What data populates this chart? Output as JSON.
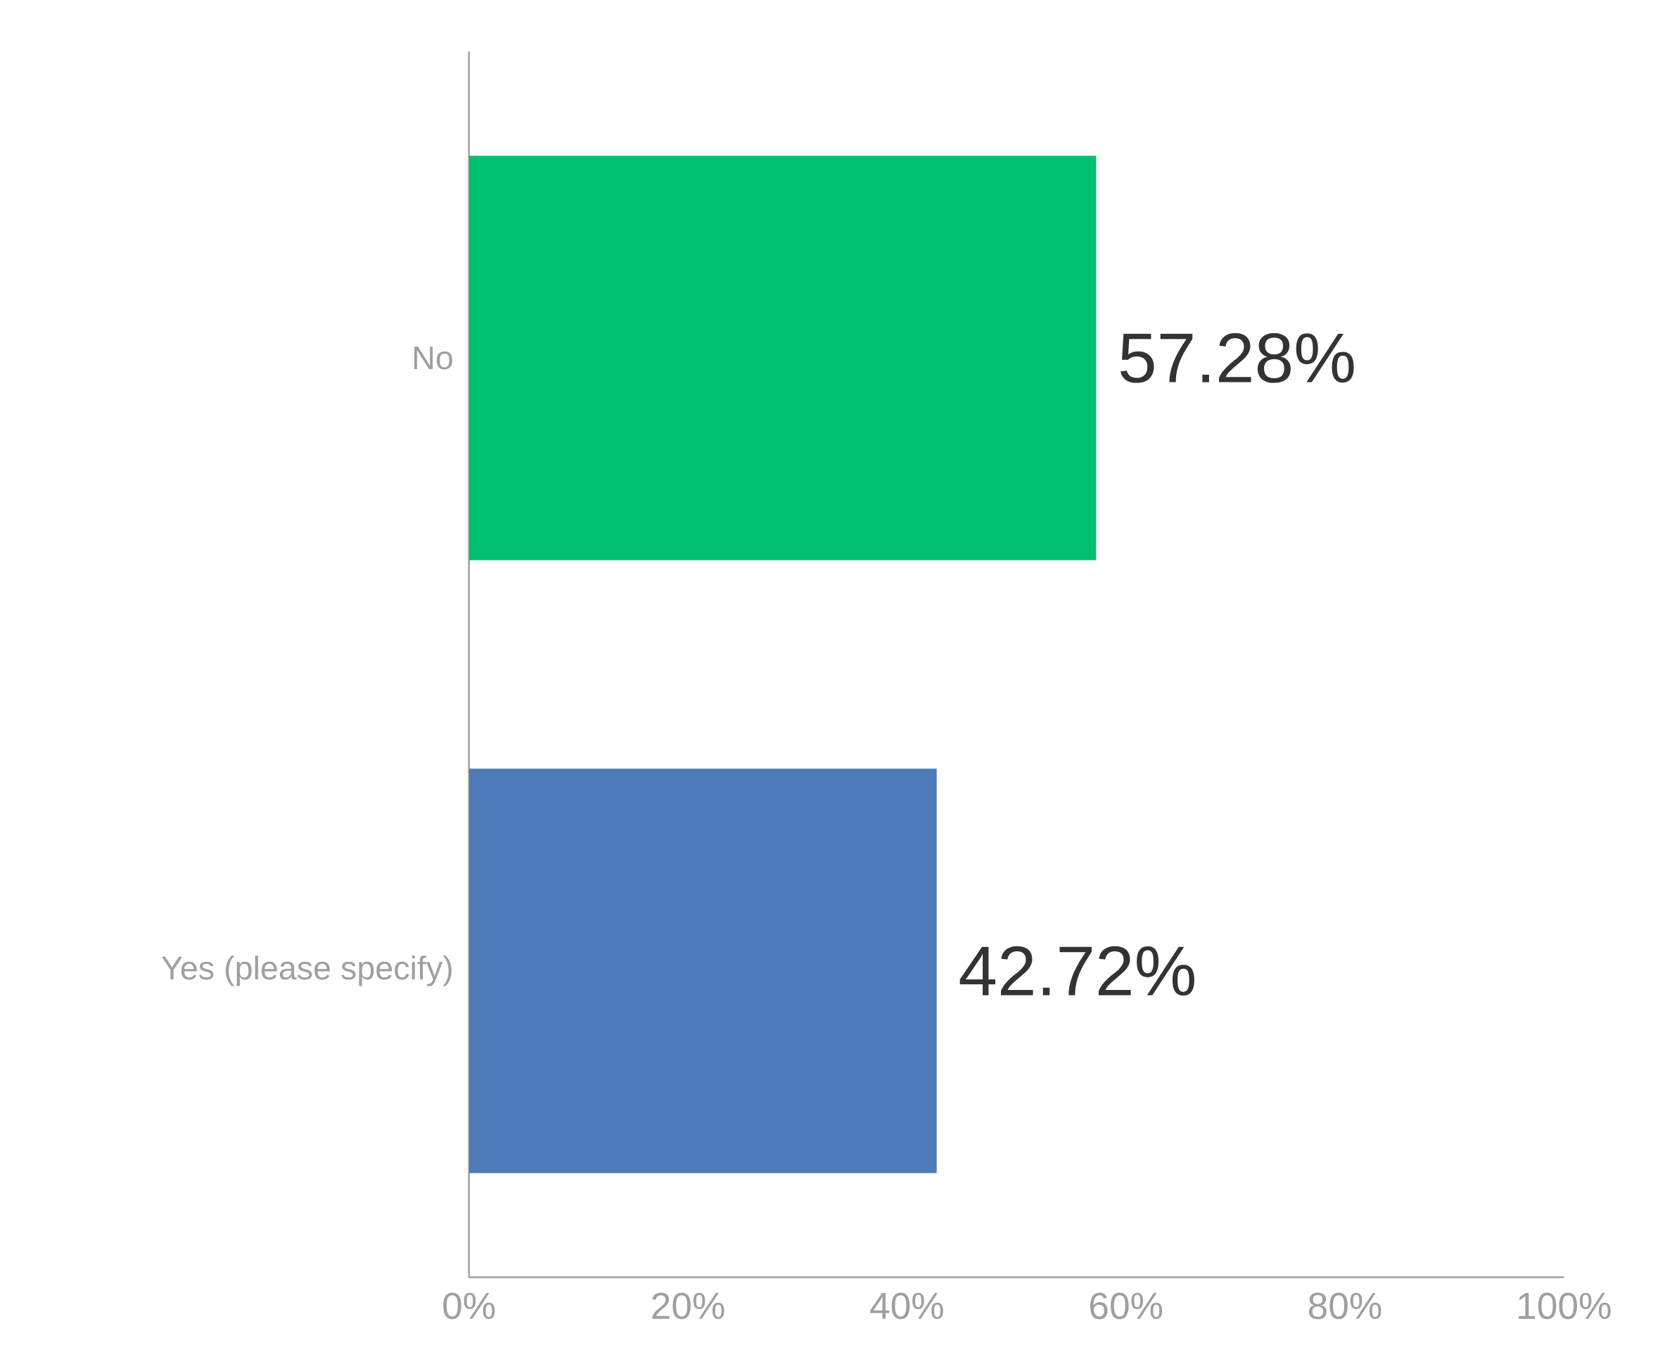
{
  "chart_data": {
    "type": "bar",
    "orientation": "horizontal",
    "categories": [
      "No",
      "Yes (please specify)"
    ],
    "values": [
      57.28,
      42.72
    ],
    "colors": [
      "#00bf6f",
      "#4e79b7"
    ],
    "value_labels": [
      "57.28%",
      "42.72%"
    ],
    "xlim": [
      0,
      100
    ],
    "xticks": [
      {
        "value": 0,
        "label": "0%"
      },
      {
        "value": 20,
        "label": "20%"
      },
      {
        "value": 40,
        "label": "40%"
      },
      {
        "value": 60,
        "label": "60%"
      },
      {
        "value": 80,
        "label": "80%"
      },
      {
        "value": 100,
        "label": "100%"
      }
    ],
    "grid": false
  }
}
